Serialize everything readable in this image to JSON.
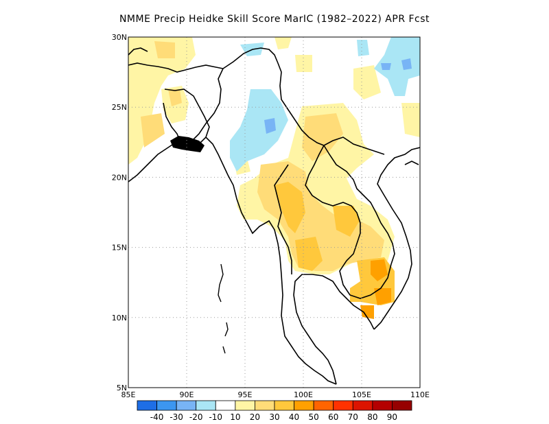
{
  "title": "NMME Precip Heidke Skill Score MarIC (1982–2022) APR Fcst",
  "map": {
    "lon_range": [
      85,
      110
    ],
    "lat_range": [
      5,
      30
    ],
    "lon_ticks": [
      "85E",
      "90E",
      "95E",
      "100E",
      "105E",
      "110E"
    ],
    "lat_ticks": [
      "5N",
      "10N",
      "15N",
      "20N",
      "25N",
      "30N"
    ],
    "grid": true
  },
  "colorbar": {
    "labels": [
      "-40",
      "-30",
      "-20",
      "-10",
      "10",
      "20",
      "30",
      "40",
      "50",
      "60",
      "70",
      "80",
      "90"
    ],
    "colors": [
      "#1e6ee6",
      "#3c96f0",
      "#78b4f5",
      "#aae6f5",
      "#ffffff",
      "#fff5a5",
      "#ffdc78",
      "#ffc83c",
      "#ffa000",
      "#ff6400",
      "#ff3200",
      "#dc1400",
      "#b40000",
      "#960000"
    ]
  },
  "fill_colors": {
    "light_yellow": "#fff5a5",
    "yellow": "#ffdc78",
    "orange": "#ffc83c",
    "dark_orange": "#ffa000",
    "light_blue": "#aae6f5",
    "blue": "#78b4f5"
  }
}
